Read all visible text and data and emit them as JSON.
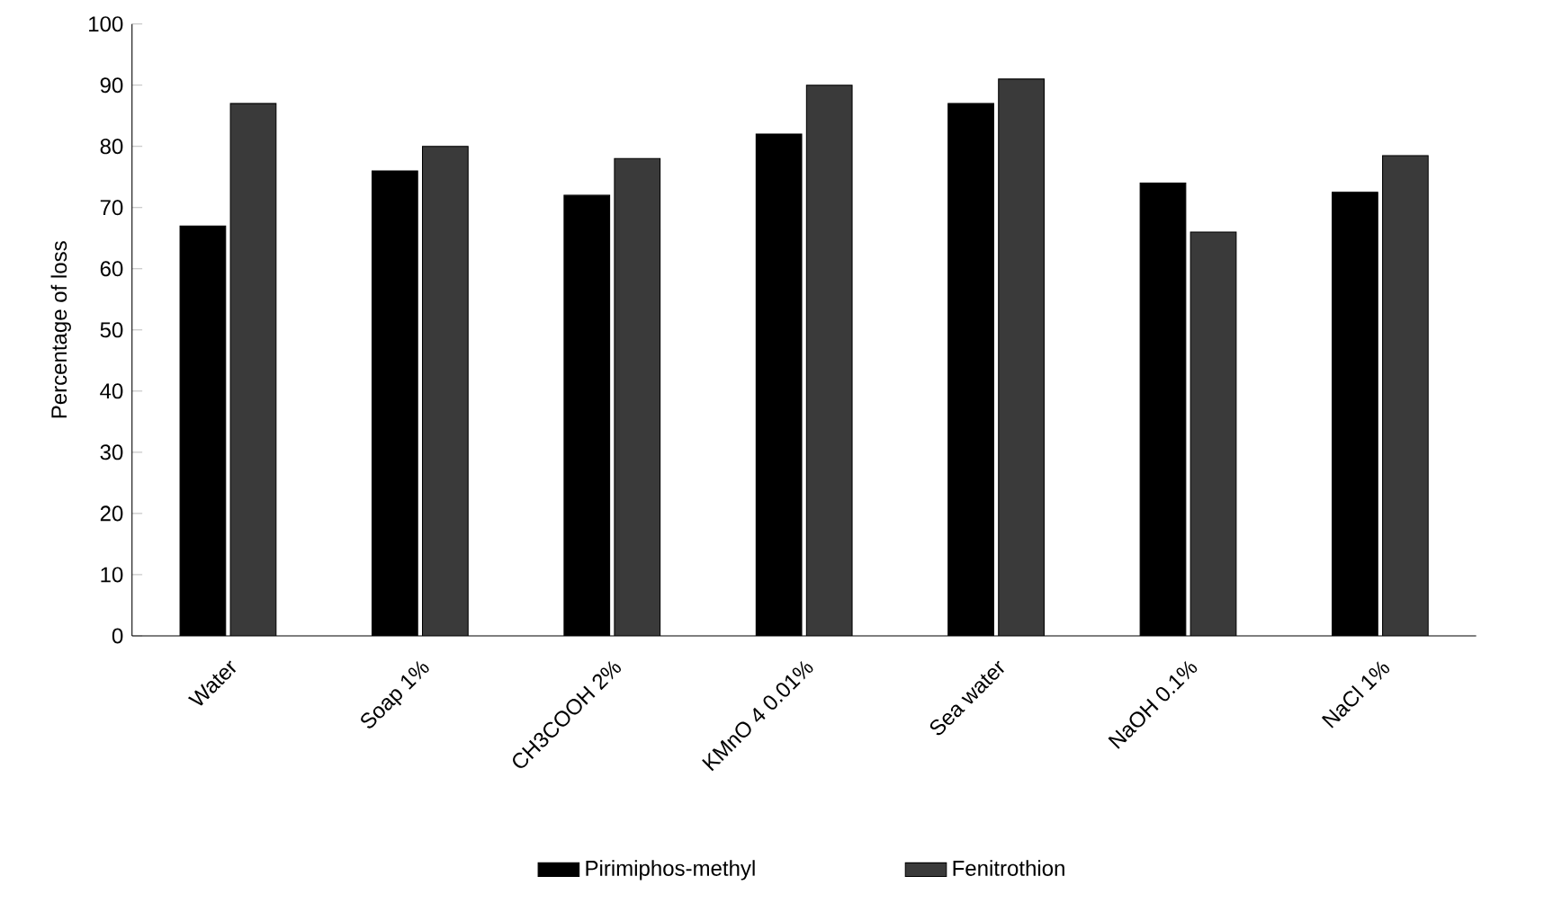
{
  "chart_data": {
    "type": "bar",
    "ylabel": "Percentage of loss",
    "categories": [
      "Water",
      "Soap 1%",
      "CH3COOH 2%",
      "KMnO 4 0.01%",
      "Sea water",
      "NaOH 0.1%",
      "NaCl 1%"
    ],
    "series": [
      {
        "name": "Pirimiphos-methyl",
        "color": "#000000",
        "values": [
          67,
          76,
          72,
          82,
          87,
          74,
          72.5
        ]
      },
      {
        "name": "Fenitrothion",
        "color": "#3a3a3a",
        "values": [
          87,
          80,
          78,
          90,
          91,
          66,
          78.5
        ]
      }
    ],
    "ylim": [
      0,
      100
    ],
    "yticks": [
      0,
      10,
      20,
      30,
      40,
      50,
      60,
      70,
      80,
      90,
      100
    ],
    "legend": "bottom",
    "grid": false
  }
}
